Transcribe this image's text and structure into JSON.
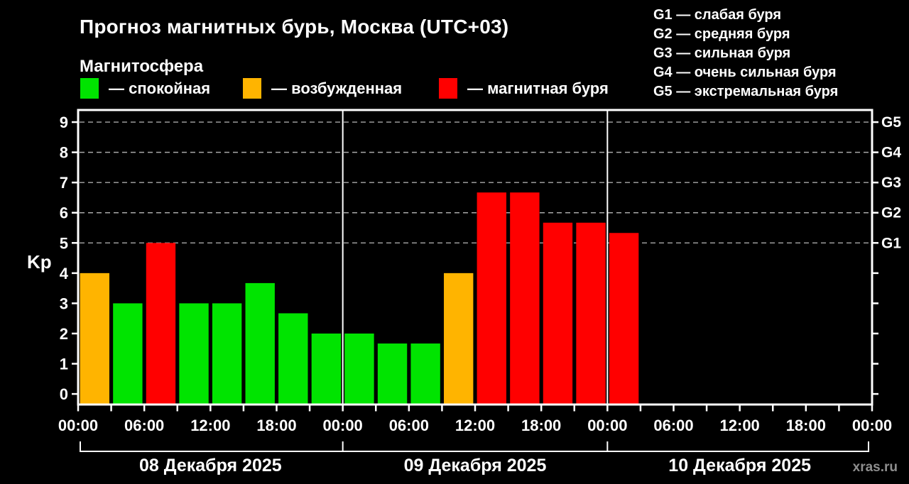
{
  "title": "Прогноз магнитных бурь, Москва (UTC+03)",
  "subtitle": "Магнитосфера",
  "legend": {
    "items": [
      {
        "key": "quiet",
        "label": "— спокойная",
        "color": "#00e400"
      },
      {
        "key": "excited",
        "label": "— возбужденная",
        "color": "#ffb400"
      },
      {
        "key": "storm",
        "label": "— магнитная буря",
        "color": "#ff0000"
      }
    ]
  },
  "storm_scale": {
    "items": [
      "G1 — слабая буря",
      "G2 — средняя буря",
      "G3 — сильная буря",
      "G4 — очень сильная буря",
      "G5 — экстремальная буря"
    ]
  },
  "watermark": "xras.ru",
  "chart_data": {
    "type": "bar",
    "title": "Прогноз магнитных бурь, Москва (UTC+03)",
    "ylabel": "Kp",
    "ylim": [
      0,
      9
    ],
    "yticks": [
      0,
      1,
      2,
      3,
      4,
      5,
      6,
      7,
      8,
      9
    ],
    "grid_lines_kp": [
      5,
      6,
      7,
      8,
      9
    ],
    "right_axis": [
      {
        "label": "G1",
        "kp": 5
      },
      {
        "label": "G2",
        "kp": 6
      },
      {
        "label": "G3",
        "kp": 7
      },
      {
        "label": "G4",
        "kp": 8
      },
      {
        "label": "G5",
        "kp": 9
      }
    ],
    "hours_total": 72,
    "slot_hours": 3,
    "x_tick_step_hours": 3,
    "x_label_step_hours": 6,
    "x_tick_labels": [
      "00:00",
      "06:00",
      "12:00",
      "18:00",
      "00:00",
      "06:00",
      "12:00",
      "18:00",
      "00:00",
      "06:00",
      "12:00",
      "18:00",
      "00:00"
    ],
    "colors": {
      "green": "#00e400",
      "orange": "#ffb400",
      "red": "#ff0000"
    },
    "days": [
      {
        "date": "08 Декабря 2025",
        "start_hour": 0,
        "values": [
          4,
          3,
          5,
          3,
          3,
          3.67,
          2.67,
          2
        ],
        "levels": [
          "orange",
          "green",
          "red",
          "green",
          "green",
          "green",
          "green",
          "green"
        ]
      },
      {
        "date": "09 Декабря 2025",
        "start_hour": 24,
        "values": [
          2,
          1.67,
          1.67,
          4,
          6.67,
          6.67,
          5.67,
          5.67
        ],
        "levels": [
          "green",
          "green",
          "green",
          "orange",
          "red",
          "red",
          "red",
          "red"
        ]
      },
      {
        "date": "10 Декабря 2025",
        "start_hour": 48,
        "values": [
          5.33
        ],
        "levels": [
          "red"
        ]
      }
    ]
  }
}
